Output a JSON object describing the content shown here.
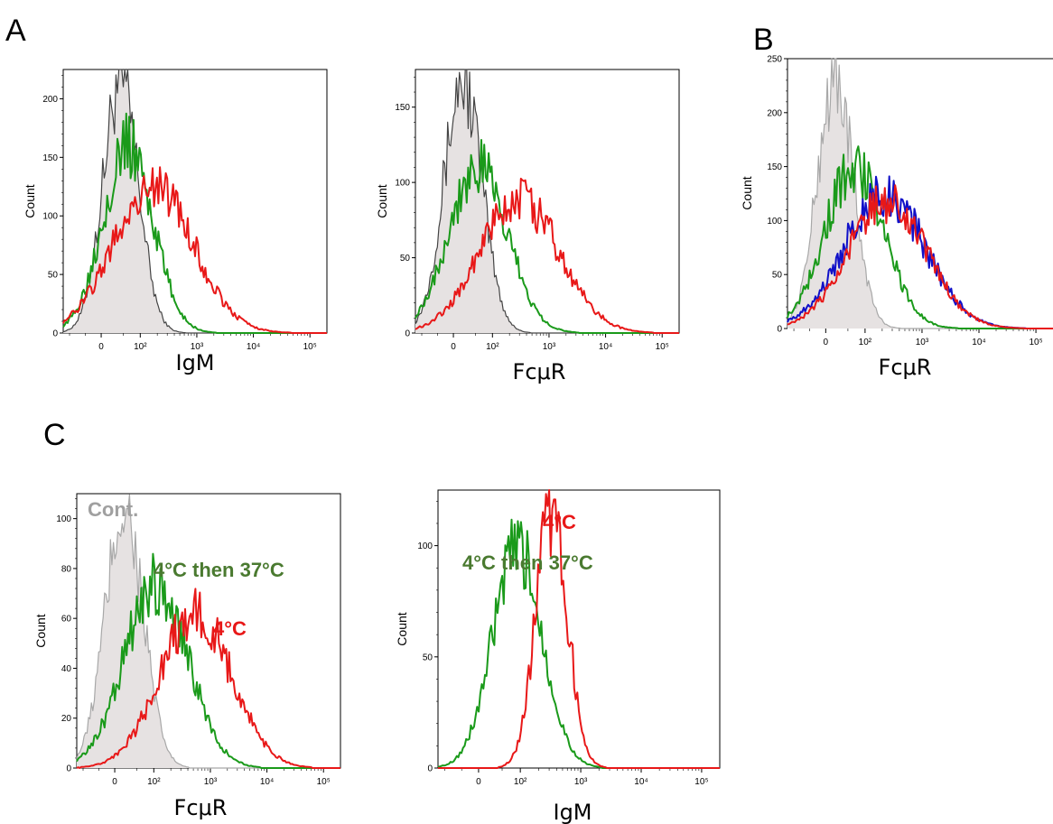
{
  "panel_letters": {
    "a": "A",
    "b": "B",
    "c": "C"
  },
  "colors": {
    "control": "#444444",
    "control_light": "#a8a8a8",
    "control_fill": "#e6e2e2",
    "green": "#1a9a1a",
    "red": "#e81818",
    "blue": "#1010c8",
    "annot_green": "#4a7a30",
    "annot_red": "#e81818",
    "annot_gray": "#a0a0a0"
  },
  "chart_data": [
    {
      "type": "area",
      "panel": "A",
      "xlabel": "IgM",
      "ylabel": "Count",
      "x_scale": "biexponential",
      "x_ticks": [
        "0",
        "10²",
        "10³",
        "10⁴",
        "10⁵"
      ],
      "y_ticks": [
        0,
        50,
        100,
        150,
        200
      ],
      "ylim": [
        0,
        225
      ],
      "series": [
        {
          "color": "control",
          "filled": true,
          "peak_x": 45,
          "peak_y": 215,
          "width": 0.42
        },
        {
          "color": "green",
          "filled": false,
          "peak_x": 60,
          "peak_y": 160,
          "width": 0.6
        },
        {
          "color": "red",
          "filled": false,
          "peak_x": 170,
          "peak_y": 125,
          "width": 0.95
        }
      ],
      "annotations": []
    },
    {
      "type": "area",
      "panel": "A",
      "xlabel": "FcμR",
      "ylabel": "Count",
      "x_scale": "biexponential",
      "x_ticks": [
        "0",
        "10²",
        "10³",
        "10⁴",
        "10⁵"
      ],
      "y_ticks": [
        0,
        50,
        100,
        150
      ],
      "ylim": [
        0,
        175
      ],
      "series": [
        {
          "color": "control",
          "filled": true,
          "peak_x": 30,
          "peak_y": 168,
          "width": 0.45
        },
        {
          "color": "green",
          "filled": false,
          "peak_x": 55,
          "peak_y": 110,
          "width": 0.7
        },
        {
          "color": "red",
          "filled": false,
          "peak_x": 300,
          "peak_y": 88,
          "width": 0.95
        }
      ],
      "annotations": []
    },
    {
      "type": "area",
      "panel": "B",
      "xlabel": "FcμR",
      "ylabel": "Count",
      "x_scale": "biexponential",
      "x_ticks": [
        "0",
        "10²",
        "10³",
        "10⁴",
        "10⁵"
      ],
      "y_ticks": [
        0,
        50,
        100,
        150,
        200,
        250
      ],
      "ylim": [
        0,
        250
      ],
      "series": [
        {
          "color": "control_light",
          "filled": true,
          "peak_x": 30,
          "peak_y": 232,
          "width": 0.42
        },
        {
          "color": "green",
          "filled": false,
          "peak_x": 65,
          "peak_y": 150,
          "width": 0.7
        },
        {
          "color": "blue",
          "filled": false,
          "peak_x": 220,
          "peak_y": 125,
          "width": 0.95
        },
        {
          "color": "red",
          "filled": false,
          "peak_x": 250,
          "peak_y": 118,
          "width": 0.92
        }
      ],
      "annotations": []
    },
    {
      "type": "area",
      "panel": "C",
      "xlabel": "FcμR",
      "ylabel": "Count",
      "x_scale": "biexponential",
      "x_ticks": [
        "0",
        "10²",
        "10³",
        "10⁴",
        "10⁵"
      ],
      "y_ticks": [
        0,
        20,
        40,
        60,
        80,
        100
      ],
      "ylim": [
        0,
        110
      ],
      "series": [
        {
          "color": "control_light",
          "filled": true,
          "peak_x": 30,
          "peak_y": 104,
          "width": 0.45
        },
        {
          "color": "green",
          "filled": false,
          "peak_x": 110,
          "peak_y": 74,
          "width": 0.75
        },
        {
          "color": "red",
          "filled": false,
          "peak_x": 550,
          "peak_y": 62,
          "width": 0.85
        }
      ],
      "annotations": [
        {
          "text": "Cont.",
          "color": "annot_gray"
        },
        {
          "text": "4°C then 37°C",
          "color": "annot_green"
        },
        {
          "text": "4°C",
          "color": "annot_red"
        }
      ]
    },
    {
      "type": "area",
      "panel": "C",
      "xlabel": "IgM",
      "ylabel": "Count",
      "x_scale": "biexponential",
      "x_ticks": [
        "0",
        "10²",
        "10³",
        "10⁴",
        "10⁵"
      ],
      "y_ticks": [
        0,
        50,
        100
      ],
      "ylim": [
        0,
        125
      ],
      "series": [
        {
          "color": "green",
          "filled": false,
          "peak_x": 90,
          "peak_y": 98,
          "width": 0.55
        },
        {
          "color": "red",
          "filled": false,
          "peak_x": 330,
          "peak_y": 115,
          "width": 0.35
        }
      ],
      "annotations": [
        {
          "text": "4°C then 37°C",
          "color": "annot_green"
        },
        {
          "text": "4°C",
          "color": "annot_red"
        }
      ]
    }
  ]
}
